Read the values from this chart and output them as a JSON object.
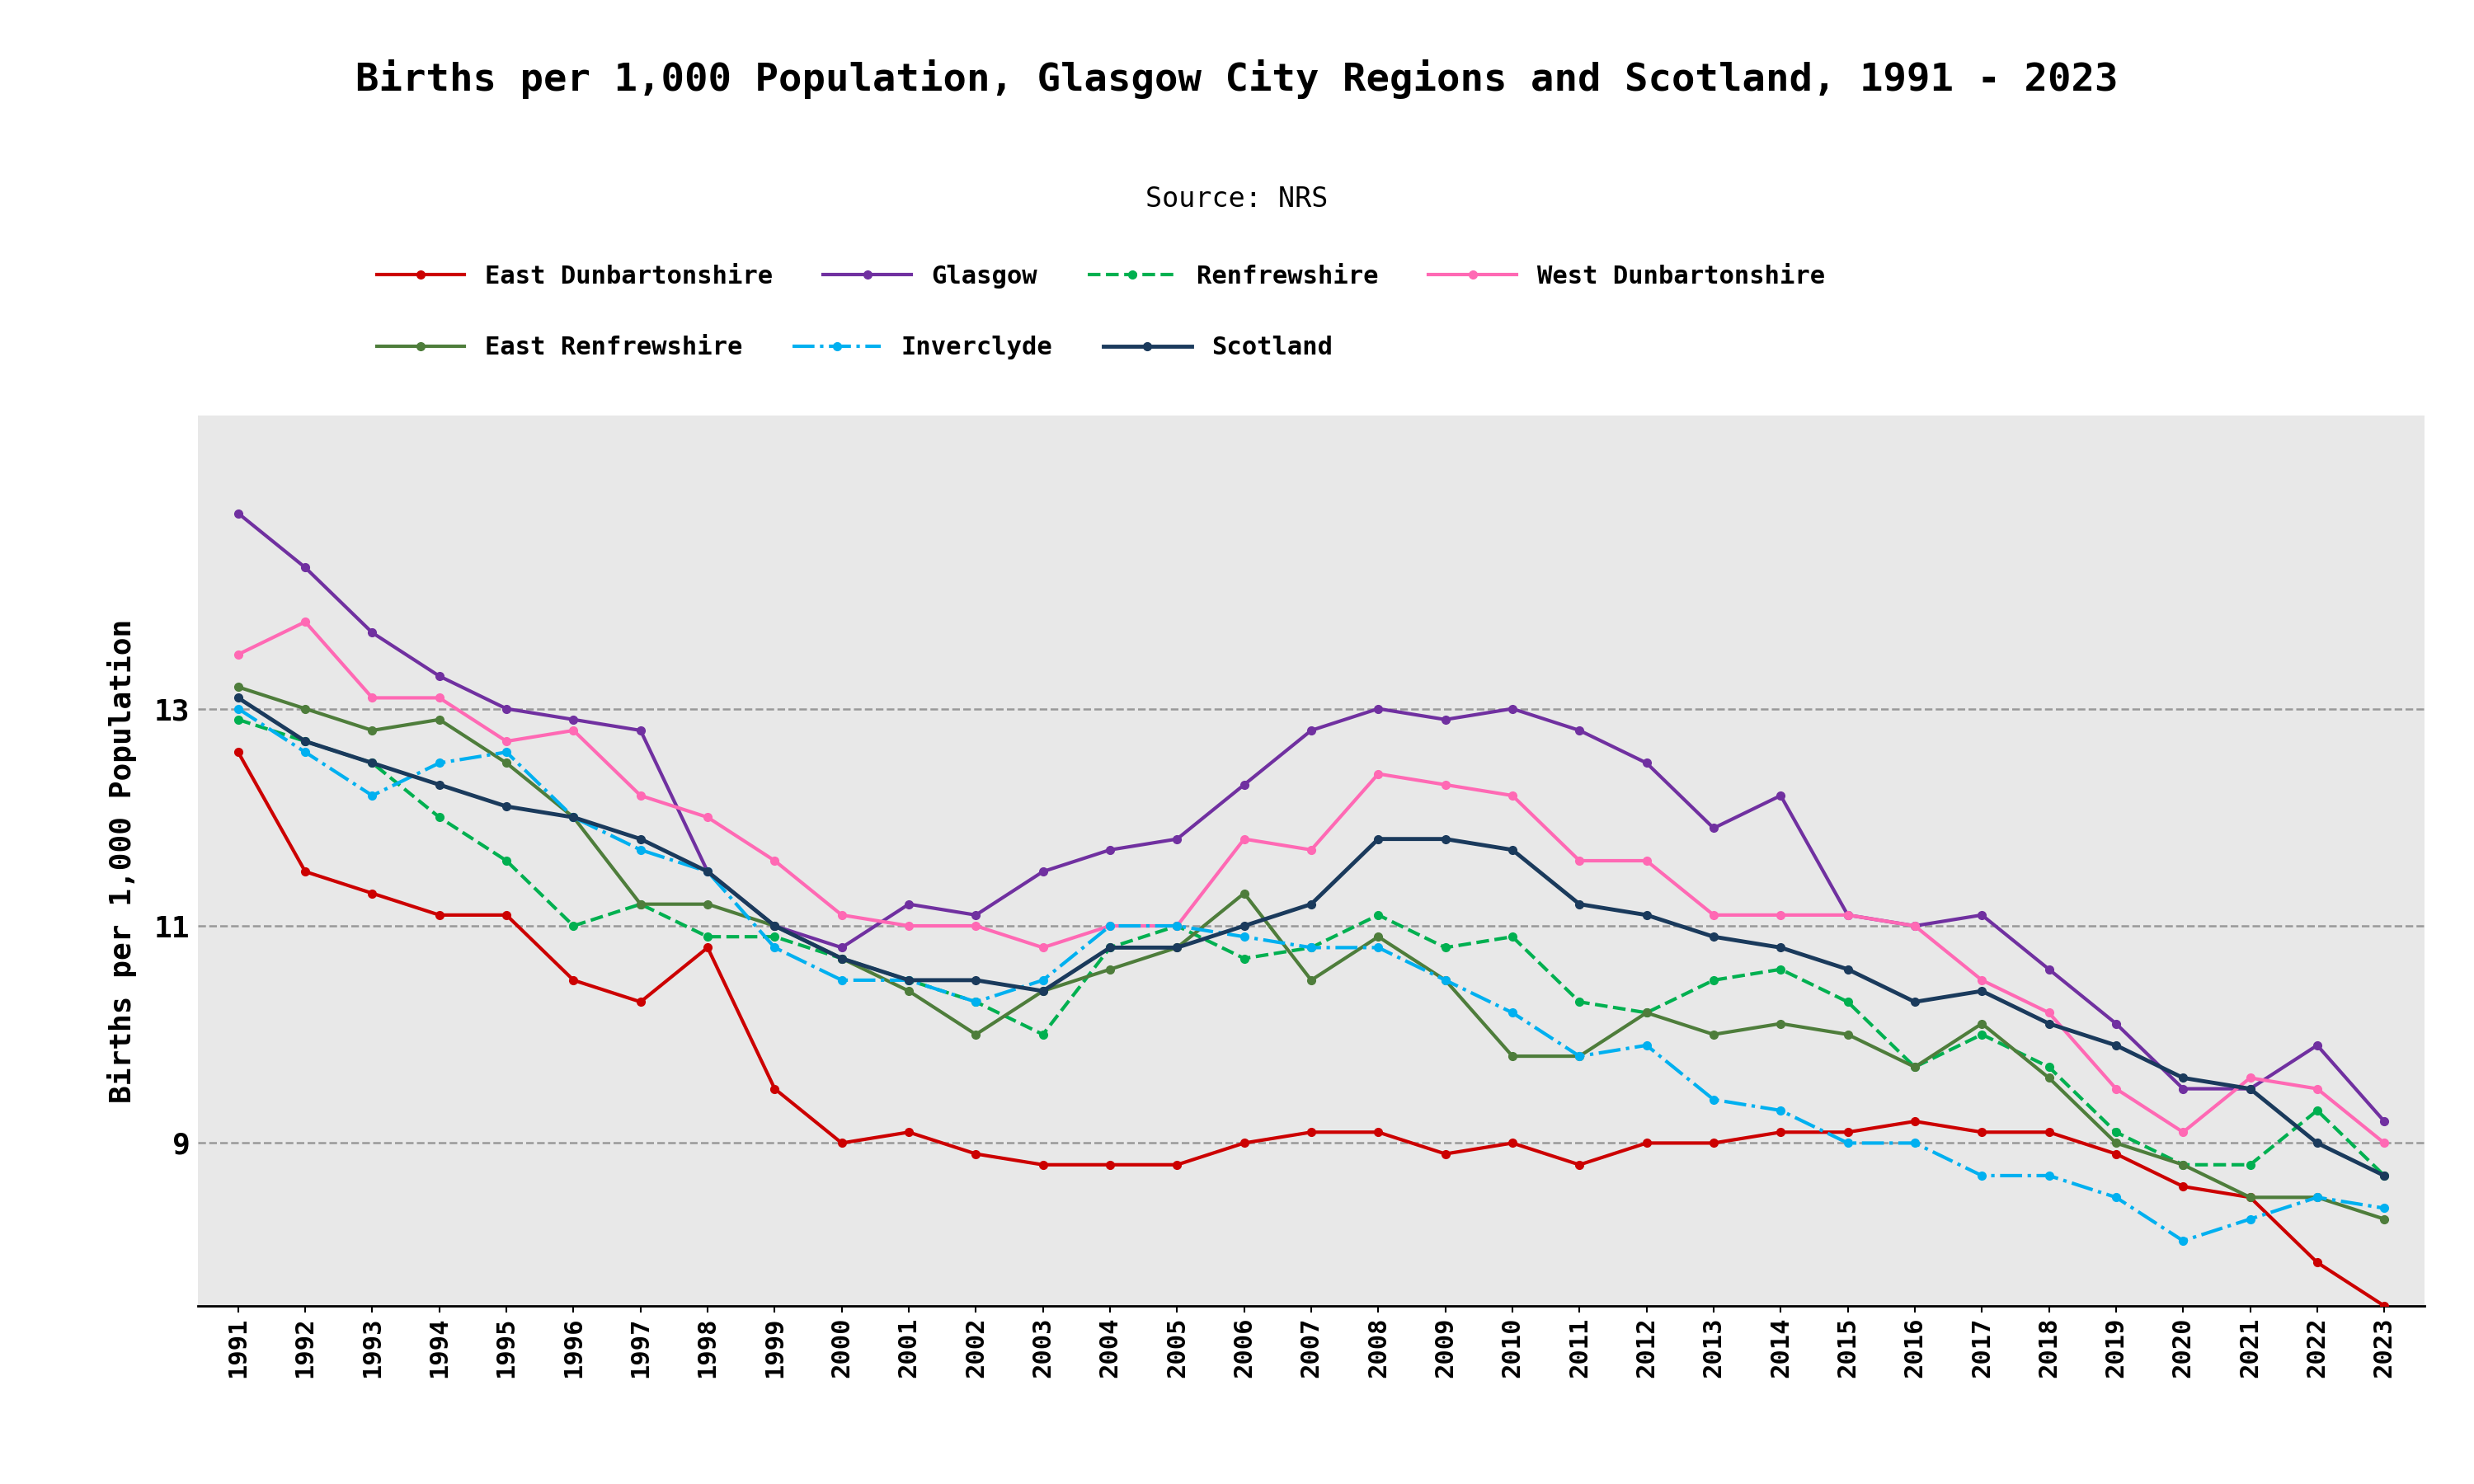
{
  "title": "Births per 1,000 Population, Glasgow City Regions and Scotland, 1991 - 2023",
  "subtitle": "Source: NRS",
  "ylabel": "Births per 1,000 Population",
  "years": [
    1991,
    1992,
    1993,
    1994,
    1995,
    1996,
    1997,
    1998,
    1999,
    2000,
    2001,
    2002,
    2003,
    2004,
    2005,
    2006,
    2007,
    2008,
    2009,
    2010,
    2011,
    2012,
    2013,
    2014,
    2015,
    2016,
    2017,
    2018,
    2019,
    2020,
    2021,
    2022,
    2023
  ],
  "series": {
    "East Dunbartonshire": {
      "color": "#cc0000",
      "linestyle": "-",
      "marker": "o",
      "linewidth": 3.0,
      "markersize": 7,
      "data": [
        12.6,
        11.5,
        11.3,
        11.1,
        11.1,
        10.5,
        10.3,
        10.8,
        9.5,
        9.0,
        9.1,
        8.9,
        8.8,
        8.8,
        8.8,
        9.0,
        9.1,
        9.1,
        8.9,
        9.0,
        8.8,
        9.0,
        9.0,
        9.1,
        9.1,
        9.2,
        9.1,
        9.1,
        8.9,
        8.6,
        8.5,
        7.9,
        7.5
      ]
    },
    "Glasgow": {
      "color": "#7030a0",
      "linestyle": "-",
      "marker": "o",
      "linewidth": 3.0,
      "markersize": 7,
      "data": [
        14.8,
        14.3,
        13.7,
        13.3,
        13.0,
        12.9,
        12.8,
        11.5,
        11.0,
        10.8,
        11.2,
        11.1,
        11.5,
        11.7,
        11.8,
        12.3,
        12.8,
        13.0,
        12.9,
        13.0,
        12.8,
        12.5,
        11.9,
        12.2,
        11.1,
        11.0,
        11.1,
        10.6,
        10.1,
        9.5,
        9.5,
        9.9,
        9.2
      ]
    },
    "Renfrewshire": {
      "color": "#00b050",
      "linestyle": "--",
      "marker": "o",
      "linewidth": 3.0,
      "markersize": 7,
      "data": [
        12.9,
        12.7,
        12.5,
        12.0,
        11.6,
        11.0,
        11.2,
        10.9,
        10.9,
        10.7,
        10.5,
        10.3,
        10.0,
        10.8,
        11.0,
        10.7,
        10.8,
        11.1,
        10.8,
        10.9,
        10.3,
        10.2,
        10.5,
        10.6,
        10.3,
        9.7,
        10.0,
        9.7,
        9.1,
        8.8,
        8.8,
        9.3,
        8.7
      ]
    },
    "West Dunbartonshire": {
      "color": "#ff69b4",
      "linestyle": "-",
      "marker": "o",
      "linewidth": 3.0,
      "markersize": 7,
      "data": [
        13.5,
        13.8,
        13.1,
        13.1,
        12.7,
        12.8,
        12.2,
        12.0,
        11.6,
        11.1,
        11.0,
        11.0,
        10.8,
        11.0,
        11.0,
        11.8,
        11.7,
        12.4,
        12.3,
        12.2,
        11.6,
        11.6,
        11.1,
        11.1,
        11.1,
        11.0,
        10.5,
        10.2,
        9.5,
        9.1,
        9.6,
        9.5,
        9.0
      ]
    },
    "East Renfrewshire": {
      "color": "#4e7d3b",
      "linestyle": "-",
      "marker": "o",
      "linewidth": 3.0,
      "markersize": 7,
      "data": [
        13.2,
        13.0,
        12.8,
        12.9,
        12.5,
        12.0,
        11.2,
        11.2,
        11.0,
        10.7,
        10.4,
        10.0,
        10.4,
        10.6,
        10.8,
        11.3,
        10.5,
        10.9,
        10.5,
        9.8,
        9.8,
        10.2,
        10.0,
        10.1,
        10.0,
        9.7,
        10.1,
        9.6,
        9.0,
        8.8,
        8.5,
        8.5,
        8.3
      ]
    },
    "Inverclyde": {
      "color": "#00b0f0",
      "linestyle": "-.",
      "marker": "o",
      "linewidth": 3.0,
      "markersize": 7,
      "data": [
        13.0,
        12.6,
        12.2,
        12.5,
        12.6,
        12.0,
        11.7,
        11.5,
        10.8,
        10.5,
        10.5,
        10.3,
        10.5,
        11.0,
        11.0,
        10.9,
        10.8,
        10.8,
        10.5,
        10.2,
        9.8,
        9.9,
        9.4,
        9.3,
        9.0,
        9.0,
        8.7,
        8.7,
        8.5,
        8.1,
        8.3,
        8.5,
        8.4
      ]
    },
    "Scotland": {
      "color": "#1a3a5c",
      "linestyle": "-",
      "marker": "o",
      "linewidth": 3.5,
      "markersize": 7,
      "data": [
        13.1,
        12.7,
        12.5,
        12.3,
        12.1,
        12.0,
        11.8,
        11.5,
        11.0,
        10.7,
        10.5,
        10.5,
        10.4,
        10.8,
        10.8,
        11.0,
        11.2,
        11.8,
        11.8,
        11.7,
        11.2,
        11.1,
        10.9,
        10.8,
        10.6,
        10.3,
        10.4,
        10.1,
        9.9,
        9.6,
        9.5,
        9.0,
        8.7
      ]
    }
  },
  "ylim": [
    7.5,
    15.7
  ],
  "yticks": [
    9,
    11,
    13
  ],
  "background_color": "#e8e8e8",
  "figure_bg": "#ffffff",
  "grid_color": "#999999",
  "legend_row1": [
    "East Dunbartonshire",
    "Glasgow",
    "Renfrewshire",
    "West Dunbartonshire"
  ],
  "legend_row2": [
    "East Renfrewshire",
    "Inverclyde",
    "Scotland"
  ]
}
